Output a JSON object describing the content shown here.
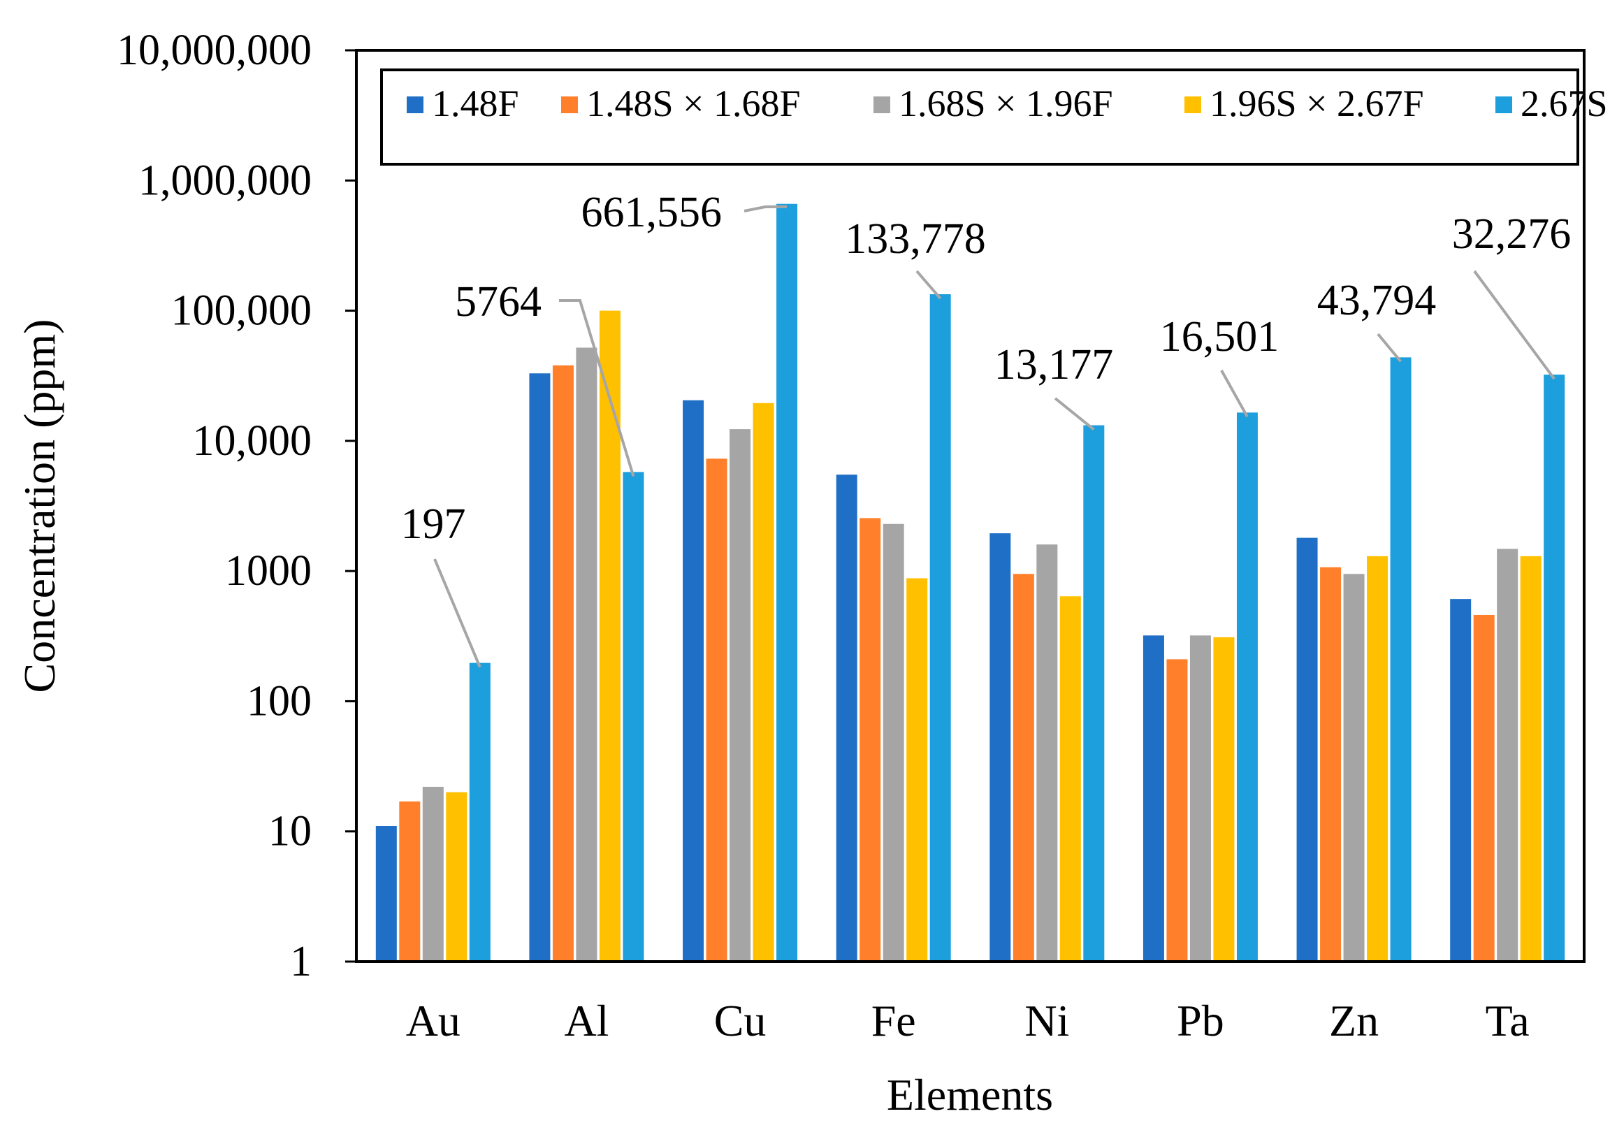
{
  "chart_data": {
    "type": "bar",
    "scale": "log",
    "title": "",
    "xlabel": "Elements",
    "ylabel": "Concentration (ppm)",
    "ylim": [
      1,
      10000000
    ],
    "y_ticks": [
      {
        "value": 1,
        "label": "1"
      },
      {
        "value": 10,
        "label": "10"
      },
      {
        "value": 100,
        "label": "100"
      },
      {
        "value": 1000,
        "label": "1000"
      },
      {
        "value": 10000,
        "label": "10,000"
      },
      {
        "value": 100000,
        "label": "100,000"
      },
      {
        "value": 1000000,
        "label": "1,000,000"
      },
      {
        "value": 10000000,
        "label": "10,000,000"
      }
    ],
    "legend_position": "top",
    "categories": [
      "Au",
      "Al",
      "Cu",
      "Fe",
      "Ni",
      "Pb",
      "Zn",
      "Ta"
    ],
    "series": [
      {
        "name": "1.48F",
        "color": "#1f6fc6",
        "values": [
          11,
          33000,
          20500,
          5500,
          1950,
          320,
          1800,
          610
        ]
      },
      {
        "name": "1.48S × 1.68F",
        "color": "#ff7f2a",
        "values": [
          17,
          38000,
          7300,
          2550,
          950,
          210,
          1070,
          460
        ]
      },
      {
        "name": "1.68S × 1.96F",
        "color": "#a5a5a5",
        "values": [
          22,
          52000,
          12300,
          2300,
          1600,
          320,
          950,
          1480
        ]
      },
      {
        "name": "1.96S × 2.67F",
        "color": "#ffc000",
        "values": [
          20,
          100000,
          19500,
          880,
          640,
          310,
          1300,
          1300
        ]
      },
      {
        "name": "2.67S",
        "color": "#1c9fdc",
        "values": [
          197,
          5764,
          661556,
          133778,
          13177,
          16501,
          43794,
          32276
        ]
      }
    ],
    "annotations": [
      {
        "text": "197",
        "category": "Au",
        "series": "2.67S"
      },
      {
        "text": "5764",
        "category": "Al",
        "series": "2.67S"
      },
      {
        "text": "661,556",
        "category": "Cu",
        "series": "2.67S"
      },
      {
        "text": "133,778",
        "category": "Fe",
        "series": "2.67S"
      },
      {
        "text": "13,177",
        "category": "Ni",
        "series": "2.67S"
      },
      {
        "text": "16,501",
        "category": "Pb",
        "series": "2.67S"
      },
      {
        "text": "43,794",
        "category": "Zn",
        "series": "2.67S"
      },
      {
        "text": "32,276",
        "category": "Ta",
        "series": "2.67S"
      }
    ]
  }
}
